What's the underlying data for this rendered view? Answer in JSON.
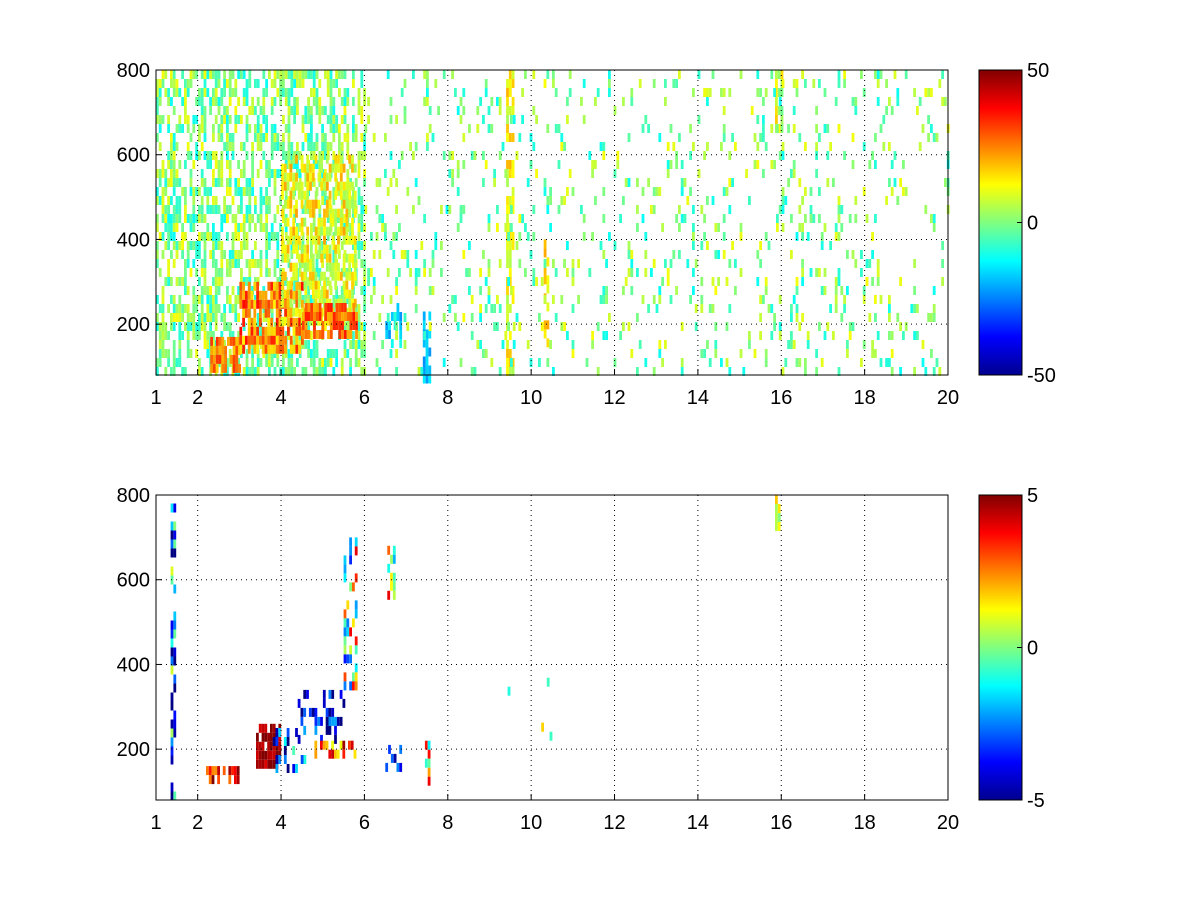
{
  "chart_data": [
    {
      "type": "heatmap",
      "colormap": "jet",
      "xlim": [
        1,
        20
      ],
      "ylim": [
        80,
        800
      ],
      "x_ticks": [
        1,
        2,
        4,
        6,
        8,
        10,
        12,
        14,
        16,
        18,
        20
      ],
      "x_tick_labels": [
        "1",
        "2",
        "4",
        "6",
        "8",
        "10",
        "12",
        "14",
        "16",
        "18",
        "20"
      ],
      "y_ticks": [
        200,
        400,
        600,
        800
      ],
      "y_tick_labels": [
        "200",
        "400",
        "600",
        "800"
      ],
      "grid": true,
      "colorbar": {
        "min": -50,
        "max": 50,
        "ticks": [
          50,
          0,
          -50
        ],
        "tick_labels": [
          "50",
          "0",
          "-50"
        ]
      },
      "clusters": [
        {
          "x": [
            1.0,
            6.0
          ],
          "y": [
            80,
            800
          ],
          "value": 0,
          "spread": 12,
          "density": 0.5
        },
        {
          "x": [
            2.3,
            3.0
          ],
          "y": [
            100,
            170
          ],
          "value": 25,
          "spread": 8,
          "density": 0.8
        },
        {
          "x": [
            3.0,
            4.5
          ],
          "y": [
            150,
            300
          ],
          "value": 25,
          "spread": 12,
          "density": 0.75
        },
        {
          "x": [
            4.0,
            5.8
          ],
          "y": [
            200,
            600
          ],
          "value": 12,
          "spread": 10,
          "density": 0.55
        },
        {
          "x": [
            4.5,
            5.8
          ],
          "y": [
            180,
            250
          ],
          "value": 28,
          "spread": 8,
          "density": 0.7
        },
        {
          "x": [
            6.5,
            6.9
          ],
          "y": [
            150,
            250
          ],
          "value": -15,
          "spread": 8,
          "density": 0.6
        },
        {
          "x": [
            7.4,
            7.6
          ],
          "y": [
            80,
            230
          ],
          "value": -18,
          "spread": 6,
          "density": 0.7
        },
        {
          "x": [
            9.4,
            9.6
          ],
          "y": [
            80,
            800
          ],
          "value": 12,
          "spread": 8,
          "density": 0.6
        },
        {
          "x": [
            10.3,
            10.4
          ],
          "y": [
            150,
            400
          ],
          "value": 15,
          "spread": 6,
          "density": 0.6
        },
        {
          "x": [
            15.85,
            16.0
          ],
          "y": [
            660,
            800
          ],
          "value": 8,
          "spread": 10,
          "density": 0.8
        },
        {
          "x": [
            6.0,
            20.0
          ],
          "y": [
            80,
            800
          ],
          "value": 0,
          "spread": 12,
          "density": 0.12
        }
      ]
    },
    {
      "type": "heatmap",
      "colormap": "jet",
      "xlim": [
        1,
        20
      ],
      "ylim": [
        80,
        800
      ],
      "x_ticks": [
        1,
        2,
        4,
        6,
        8,
        10,
        12,
        14,
        16,
        18,
        20
      ],
      "x_tick_labels": [
        "1",
        "2",
        "4",
        "6",
        "8",
        "10",
        "12",
        "14",
        "16",
        "18",
        "20"
      ],
      "y_ticks": [
        200,
        400,
        600,
        800
      ],
      "y_tick_labels": [
        "200",
        "400",
        "600",
        "800"
      ],
      "grid": true,
      "colorbar": {
        "min": -5,
        "max": 5,
        "ticks": [
          5,
          0,
          -5
        ],
        "tick_labels": [
          "5",
          "0",
          "-5"
        ]
      },
      "clusters": [
        {
          "x": [
            1.35,
            1.45
          ],
          "y": [
            100,
            780
          ],
          "value": -3,
          "spread": 4,
          "density": 0.5
        },
        {
          "x": [
            2.2,
            3.0
          ],
          "y": [
            120,
            160
          ],
          "value": 4,
          "spread": 2,
          "density": 0.55
        },
        {
          "x": [
            3.4,
            4.0
          ],
          "y": [
            160,
            260
          ],
          "value": 5,
          "spread": 1,
          "density": 0.75
        },
        {
          "x": [
            3.8,
            4.6
          ],
          "y": [
            160,
            250
          ],
          "value": -2,
          "spread": 4,
          "density": 0.35
        },
        {
          "x": [
            4.4,
            5.5
          ],
          "y": [
            220,
            340
          ],
          "value": -4,
          "spread": 2,
          "density": 0.35
        },
        {
          "x": [
            4.8,
            5.8
          ],
          "y": [
            190,
            220
          ],
          "value": 3,
          "spread": 2,
          "density": 0.6
        },
        {
          "x": [
            5.5,
            5.8
          ],
          "y": [
            350,
            700
          ],
          "value": 0,
          "spread": 4,
          "density": 0.35
        },
        {
          "x": [
            6.55,
            6.75
          ],
          "y": [
            560,
            680
          ],
          "value": 1,
          "spread": 3,
          "density": 0.5
        },
        {
          "x": [
            6.5,
            6.85
          ],
          "y": [
            150,
            210
          ],
          "value": -4,
          "spread": 2,
          "density": 0.5
        },
        {
          "x": [
            7.45,
            7.55
          ],
          "y": [
            120,
            220
          ],
          "value": 1,
          "spread": 3,
          "density": 0.7
        },
        {
          "x": [
            15.85,
            15.95
          ],
          "y": [
            720,
            800
          ],
          "value": 0.8,
          "spread": 1,
          "density": 0.8
        },
        {
          "x": [
            9.3,
            10.5
          ],
          "y": [
            190,
            390
          ],
          "value": 0,
          "spread": 3,
          "density": 0.04
        }
      ]
    }
  ]
}
